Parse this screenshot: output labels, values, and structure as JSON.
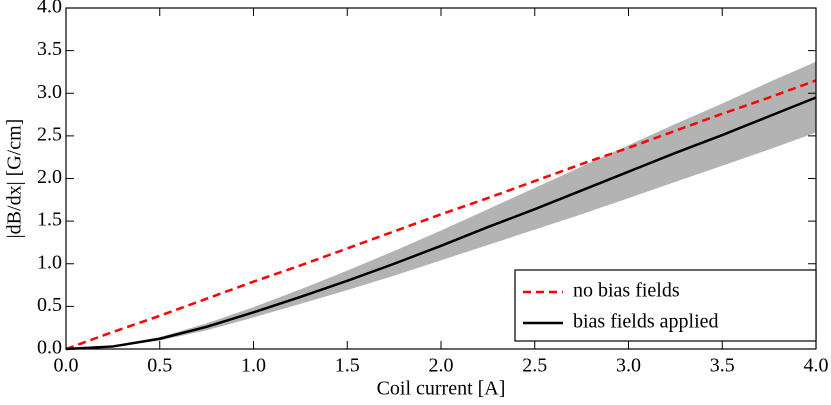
{
  "chart_data": {
    "type": "line",
    "xlabel": "Coil current [A]",
    "ylabel": "|dB/dx| [G/cm]",
    "x": [
      0,
      0.25,
      0.5,
      0.75,
      1.0,
      1.25,
      1.5,
      1.75,
      2.0,
      2.25,
      2.5,
      2.75,
      3.0,
      3.25,
      3.5,
      3.75,
      4.0
    ],
    "band": {
      "color": "#b3b3b3",
      "upper": [
        0,
        0.035,
        0.14,
        0.3,
        0.49,
        0.7,
        0.92,
        1.15,
        1.39,
        1.64,
        1.89,
        2.14,
        2.39,
        2.64,
        2.88,
        3.13,
        3.37
      ],
      "lower": [
        0,
        0.025,
        0.1,
        0.22,
        0.37,
        0.53,
        0.69,
        0.86,
        1.04,
        1.22,
        1.4,
        1.58,
        1.77,
        1.96,
        2.15,
        2.34,
        2.54
      ]
    },
    "series": [
      {
        "name": "no bias fields",
        "color": "#ff0000",
        "dashed": true,
        "values": [
          0,
          0.2,
          0.39,
          0.59,
          0.79,
          0.98,
          1.18,
          1.38,
          1.58,
          1.77,
          1.97,
          2.17,
          2.36,
          2.56,
          2.76,
          2.95,
          3.15
        ]
      },
      {
        "name": "bias fields applied",
        "color": "#000000",
        "dashed": false,
        "values": [
          0,
          0.03,
          0.12,
          0.26,
          0.43,
          0.61,
          0.8,
          1.0,
          1.21,
          1.43,
          1.64,
          1.86,
          2.08,
          2.3,
          2.51,
          2.73,
          2.95
        ]
      }
    ],
    "xlim": [
      0,
      4
    ],
    "ylim": [
      0,
      4
    ],
    "xticks": [
      {
        "value": 0,
        "label": "0.0"
      },
      0.5,
      {
        "value": 1,
        "label": "1.0"
      },
      1.5,
      {
        "value": 2,
        "label": "2.0"
      },
      2.5,
      {
        "value": 3,
        "label": "3.0"
      },
      3.5,
      {
        "value": 4,
        "label": "4.0"
      }
    ],
    "yticks": [
      {
        "value": 0,
        "label": "0.0"
      },
      0.5,
      {
        "value": 1,
        "label": "1.0"
      },
      1.5,
      {
        "value": 2,
        "label": "2.0"
      },
      2.5,
      {
        "value": 3,
        "label": "3.0"
      },
      3.5,
      {
        "value": 4,
        "label": "4.0"
      }
    ],
    "legend": "lower right"
  }
}
